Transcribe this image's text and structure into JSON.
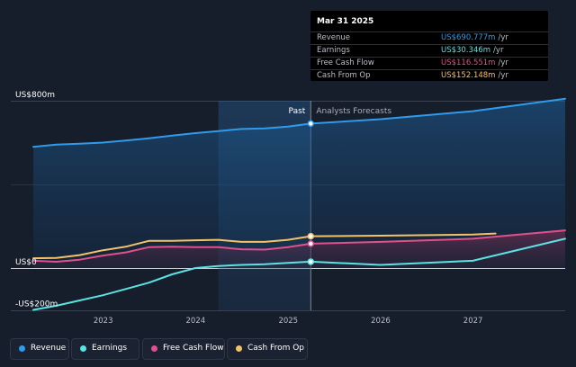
{
  "tooltip": {
    "date": "Mar 31 2025",
    "rows": [
      {
        "label": "Revenue",
        "value": "US$690.777m",
        "unit": "/yr",
        "color": "#2f9bea"
      },
      {
        "label": "Earnings",
        "value": "US$30.346m",
        "unit": "/yr",
        "color": "#5ce2e2"
      },
      {
        "label": "Free Cash Flow",
        "value": "US$116.551m",
        "unit": "/yr",
        "color": "#e0508c"
      },
      {
        "label": "Cash From Op",
        "value": "US$152.148m",
        "unit": "/yr",
        "color": "#f3c26a"
      }
    ]
  },
  "legend": [
    {
      "label": "Revenue",
      "color": "#2f9bea"
    },
    {
      "label": "Earnings",
      "color": "#5ce2e2"
    },
    {
      "label": "Free Cash Flow",
      "color": "#e0508c"
    },
    {
      "label": "Cash From Op",
      "color": "#f3c26a"
    }
  ],
  "chart_data": {
    "type": "line",
    "y_tick_labels": [
      "US$800m",
      "US$0",
      "-US$200m"
    ],
    "x_tick_labels": [
      "2023",
      "2024",
      "2025",
      "2026",
      "2027"
    ],
    "ylim": [
      -200,
      800
    ],
    "xlim": [
      "2022-01-01",
      "2027-12-31"
    ],
    "past_label": "Past",
    "forecast_label": "Analysts Forecasts",
    "divider_date": "2025-03-31",
    "shaded_region_start": "2024-03-31",
    "grid": "horizontal",
    "legend_position": "bottom-left",
    "series": [
      {
        "name": "Revenue",
        "color": "#2f9bea",
        "points": [
          [
            "2022-03-31",
            580
          ],
          [
            "2022-06-30",
            590
          ],
          [
            "2022-09-30",
            595
          ],
          [
            "2022-12-31",
            600
          ],
          [
            "2023-03-31",
            610
          ],
          [
            "2023-06-30",
            620
          ],
          [
            "2023-09-30",
            633
          ],
          [
            "2023-12-31",
            645
          ],
          [
            "2024-03-31",
            655
          ],
          [
            "2024-06-30",
            665
          ],
          [
            "2024-09-30",
            668
          ],
          [
            "2024-12-31",
            676
          ],
          [
            "2025-03-31",
            690.777
          ],
          [
            "2025-12-31",
            712
          ],
          [
            "2026-12-31",
            750
          ],
          [
            "2027-12-31",
            810
          ]
        ]
      },
      {
        "name": "Earnings",
        "color": "#5ce2e2",
        "points": [
          [
            "2022-03-31",
            -200
          ],
          [
            "2022-06-30",
            -180
          ],
          [
            "2022-09-30",
            -155
          ],
          [
            "2022-12-31",
            -130
          ],
          [
            "2023-03-31",
            -100
          ],
          [
            "2023-06-30",
            -70
          ],
          [
            "2023-09-30",
            -30
          ],
          [
            "2023-12-31",
            0
          ],
          [
            "2024-03-31",
            10
          ],
          [
            "2024-06-30",
            15
          ],
          [
            "2024-09-30",
            18
          ],
          [
            "2024-12-31",
            25
          ],
          [
            "2025-03-31",
            30.346
          ],
          [
            "2025-12-31",
            15
          ],
          [
            "2026-12-31",
            35
          ],
          [
            "2027-12-31",
            140
          ]
        ]
      },
      {
        "name": "Free Cash Flow",
        "color": "#e0508c",
        "points": [
          [
            "2022-03-31",
            35
          ],
          [
            "2022-06-30",
            30
          ],
          [
            "2022-09-30",
            40
          ],
          [
            "2022-12-31",
            60
          ],
          [
            "2023-03-31",
            75
          ],
          [
            "2023-06-30",
            100
          ],
          [
            "2023-09-30",
            102
          ],
          [
            "2023-12-31",
            100
          ],
          [
            "2024-03-31",
            100
          ],
          [
            "2024-06-30",
            90
          ],
          [
            "2024-09-30",
            88
          ],
          [
            "2024-12-31",
            100
          ],
          [
            "2025-03-31",
            116.551
          ],
          [
            "2025-12-31",
            125
          ],
          [
            "2026-12-31",
            140
          ],
          [
            "2027-12-31",
            180
          ]
        ]
      },
      {
        "name": "Cash From Op",
        "color": "#f3c26a",
        "points": [
          [
            "2022-03-31",
            47
          ],
          [
            "2022-06-30",
            48
          ],
          [
            "2022-09-30",
            62
          ],
          [
            "2022-12-31",
            85
          ],
          [
            "2023-03-31",
            102
          ],
          [
            "2023-06-30",
            130
          ],
          [
            "2023-09-30",
            130
          ],
          [
            "2023-12-31",
            133
          ],
          [
            "2024-03-31",
            135
          ],
          [
            "2024-06-30",
            125
          ],
          [
            "2024-09-30",
            125
          ],
          [
            "2024-12-31",
            135
          ],
          [
            "2025-03-31",
            152.148
          ],
          [
            "2025-12-31",
            155
          ],
          [
            "2026-12-31",
            160
          ],
          [
            "2027-03-31",
            165
          ]
        ]
      }
    ]
  }
}
